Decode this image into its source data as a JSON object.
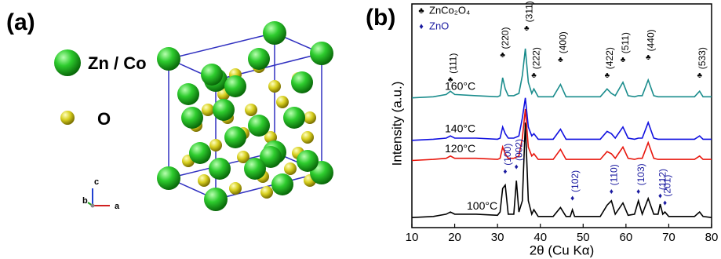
{
  "panel_a": {
    "label": "(a)",
    "legend": [
      "Zn / Co",
      "O"
    ],
    "axes": [
      "c",
      "b",
      "a"
    ]
  },
  "chart_data": {
    "type": "line",
    "panel_label": "(b)",
    "xlabel": "2θ (Cu Kα)",
    "ylabel": "Intensity (a.u.)",
    "xlim": [
      10,
      80
    ],
    "xticks": [
      10,
      20,
      30,
      40,
      50,
      60,
      70,
      80
    ],
    "ylim": [
      0,
      100
    ],
    "x": [
      10,
      15,
      18,
      19,
      20,
      25,
      30,
      30.6,
      31.2,
      31.8,
      32.5,
      33.8,
      34.4,
      35,
      35.8,
      36.5,
      37.2,
      38,
      38.5,
      39.5,
      43,
      44.7,
      46,
      47,
      47.5,
      48,
      54,
      55.6,
      56.6,
      57.5,
      59.3,
      60.5,
      62,
      62.9,
      63.8,
      65.2,
      66.5,
      67.5,
      68,
      68.6,
      69.1,
      70,
      76,
      77.2,
      78,
      80
    ],
    "series": [
      {
        "name": "100°C",
        "color": "#000000",
        "values": [
          4.5,
          5,
          6,
          7,
          6,
          6,
          5.5,
          7,
          17.5,
          19,
          6,
          6,
          21,
          7,
          12,
          47,
          12,
          6,
          8,
          5,
          5,
          9,
          5,
          5,
          8,
          5,
          5,
          10,
          12,
          6,
          11,
          5.5,
          6,
          12,
          6,
          13,
          6,
          6,
          10.5,
          6,
          7,
          5,
          5,
          7,
          5,
          4.5
        ]
      },
      {
        "name": "120°C",
        "color": "#e8160c",
        "values": [
          30,
          30.5,
          31,
          32,
          31,
          31,
          30.5,
          31,
          36,
          33,
          31,
          31,
          31.5,
          32,
          40,
          53,
          36,
          32,
          33,
          30.5,
          30.5,
          35,
          30.5,
          30.5,
          30.5,
          30.5,
          30.5,
          34,
          33,
          31,
          36,
          31,
          30.5,
          31,
          31,
          38,
          31,
          30.5,
          30.5,
          30.5,
          30.5,
          30.5,
          30.5,
          32,
          30.5,
          30.5
        ]
      },
      {
        "name": "140°C",
        "color": "#1010e0",
        "values": [
          39,
          39.5,
          40,
          41,
          40,
          40,
          39.5,
          40,
          45,
          42,
          40,
          40,
          40.5,
          41,
          49,
          58,
          45,
          41,
          42,
          39.5,
          39.5,
          44,
          39.5,
          39.5,
          39.5,
          39.5,
          39.5,
          43,
          42,
          40,
          45,
          40,
          39.5,
          40,
          40,
          47,
          40,
          39.5,
          39.5,
          39.5,
          39.5,
          39.5,
          39.5,
          41,
          39.5,
          39.5
        ]
      },
      {
        "name": "160°C",
        "color": "#1a8c8c",
        "values": [
          58,
          58.5,
          59.5,
          61,
          59.5,
          59,
          58.5,
          59,
          67,
          62,
          59,
          59,
          59.5,
          60,
          68,
          80,
          65,
          60,
          62,
          58.5,
          58.5,
          64,
          58.5,
          58.5,
          58.5,
          58.5,
          58.5,
          62,
          60,
          59,
          65,
          59,
          58.5,
          59,
          59,
          66,
          59,
          58.5,
          58.5,
          58.5,
          58.5,
          58.5,
          58.5,
          61,
          58.5,
          58.5
        ]
      }
    ],
    "markers": [
      {
        "name": "ZnCo₂O₄",
        "symbol": "♣",
        "color": "#000000"
      },
      {
        "name": "ZnO",
        "symbol": "♦",
        "color": "#1a1aa0"
      }
    ],
    "annotations": [
      {
        "text": "(111)",
        "x": 19,
        "y": 66,
        "marker": 0
      },
      {
        "text": "(220)",
        "x": 31.2,
        "y": 77,
        "marker": 0
      },
      {
        "text": "(311)",
        "x": 36.8,
        "y": 89,
        "marker": 0
      },
      {
        "text": "(222)",
        "x": 38.5,
        "y": 68,
        "marker": 0
      },
      {
        "text": "(400)",
        "x": 44.7,
        "y": 75,
        "marker": 0
      },
      {
        "text": "(422)",
        "x": 55.6,
        "y": 68,
        "marker": 0
      },
      {
        "text": "(511)",
        "x": 59.3,
        "y": 75,
        "marker": 0
      },
      {
        "text": "(440)",
        "x": 65.2,
        "y": 76,
        "marker": 0
      },
      {
        "text": "(533)",
        "x": 77.2,
        "y": 68,
        "marker": 0
      },
      {
        "text": "(100)",
        "x": 31.8,
        "y": 25,
        "marker": 1
      },
      {
        "text": "(002)",
        "x": 34.4,
        "y": 27,
        "marker": 1
      },
      {
        "text": "(102)",
        "x": 47.5,
        "y": 13,
        "marker": 1
      },
      {
        "text": "(110)",
        "x": 56.6,
        "y": 16,
        "marker": 1
      },
      {
        "text": "(103)",
        "x": 62.9,
        "y": 16,
        "marker": 1
      },
      {
        "text": "(112)",
        "x": 68,
        "y": 14,
        "marker": 1
      },
      {
        "text": "(201)",
        "x": 69.1,
        "y": 11,
        "marker": 1
      }
    ]
  }
}
